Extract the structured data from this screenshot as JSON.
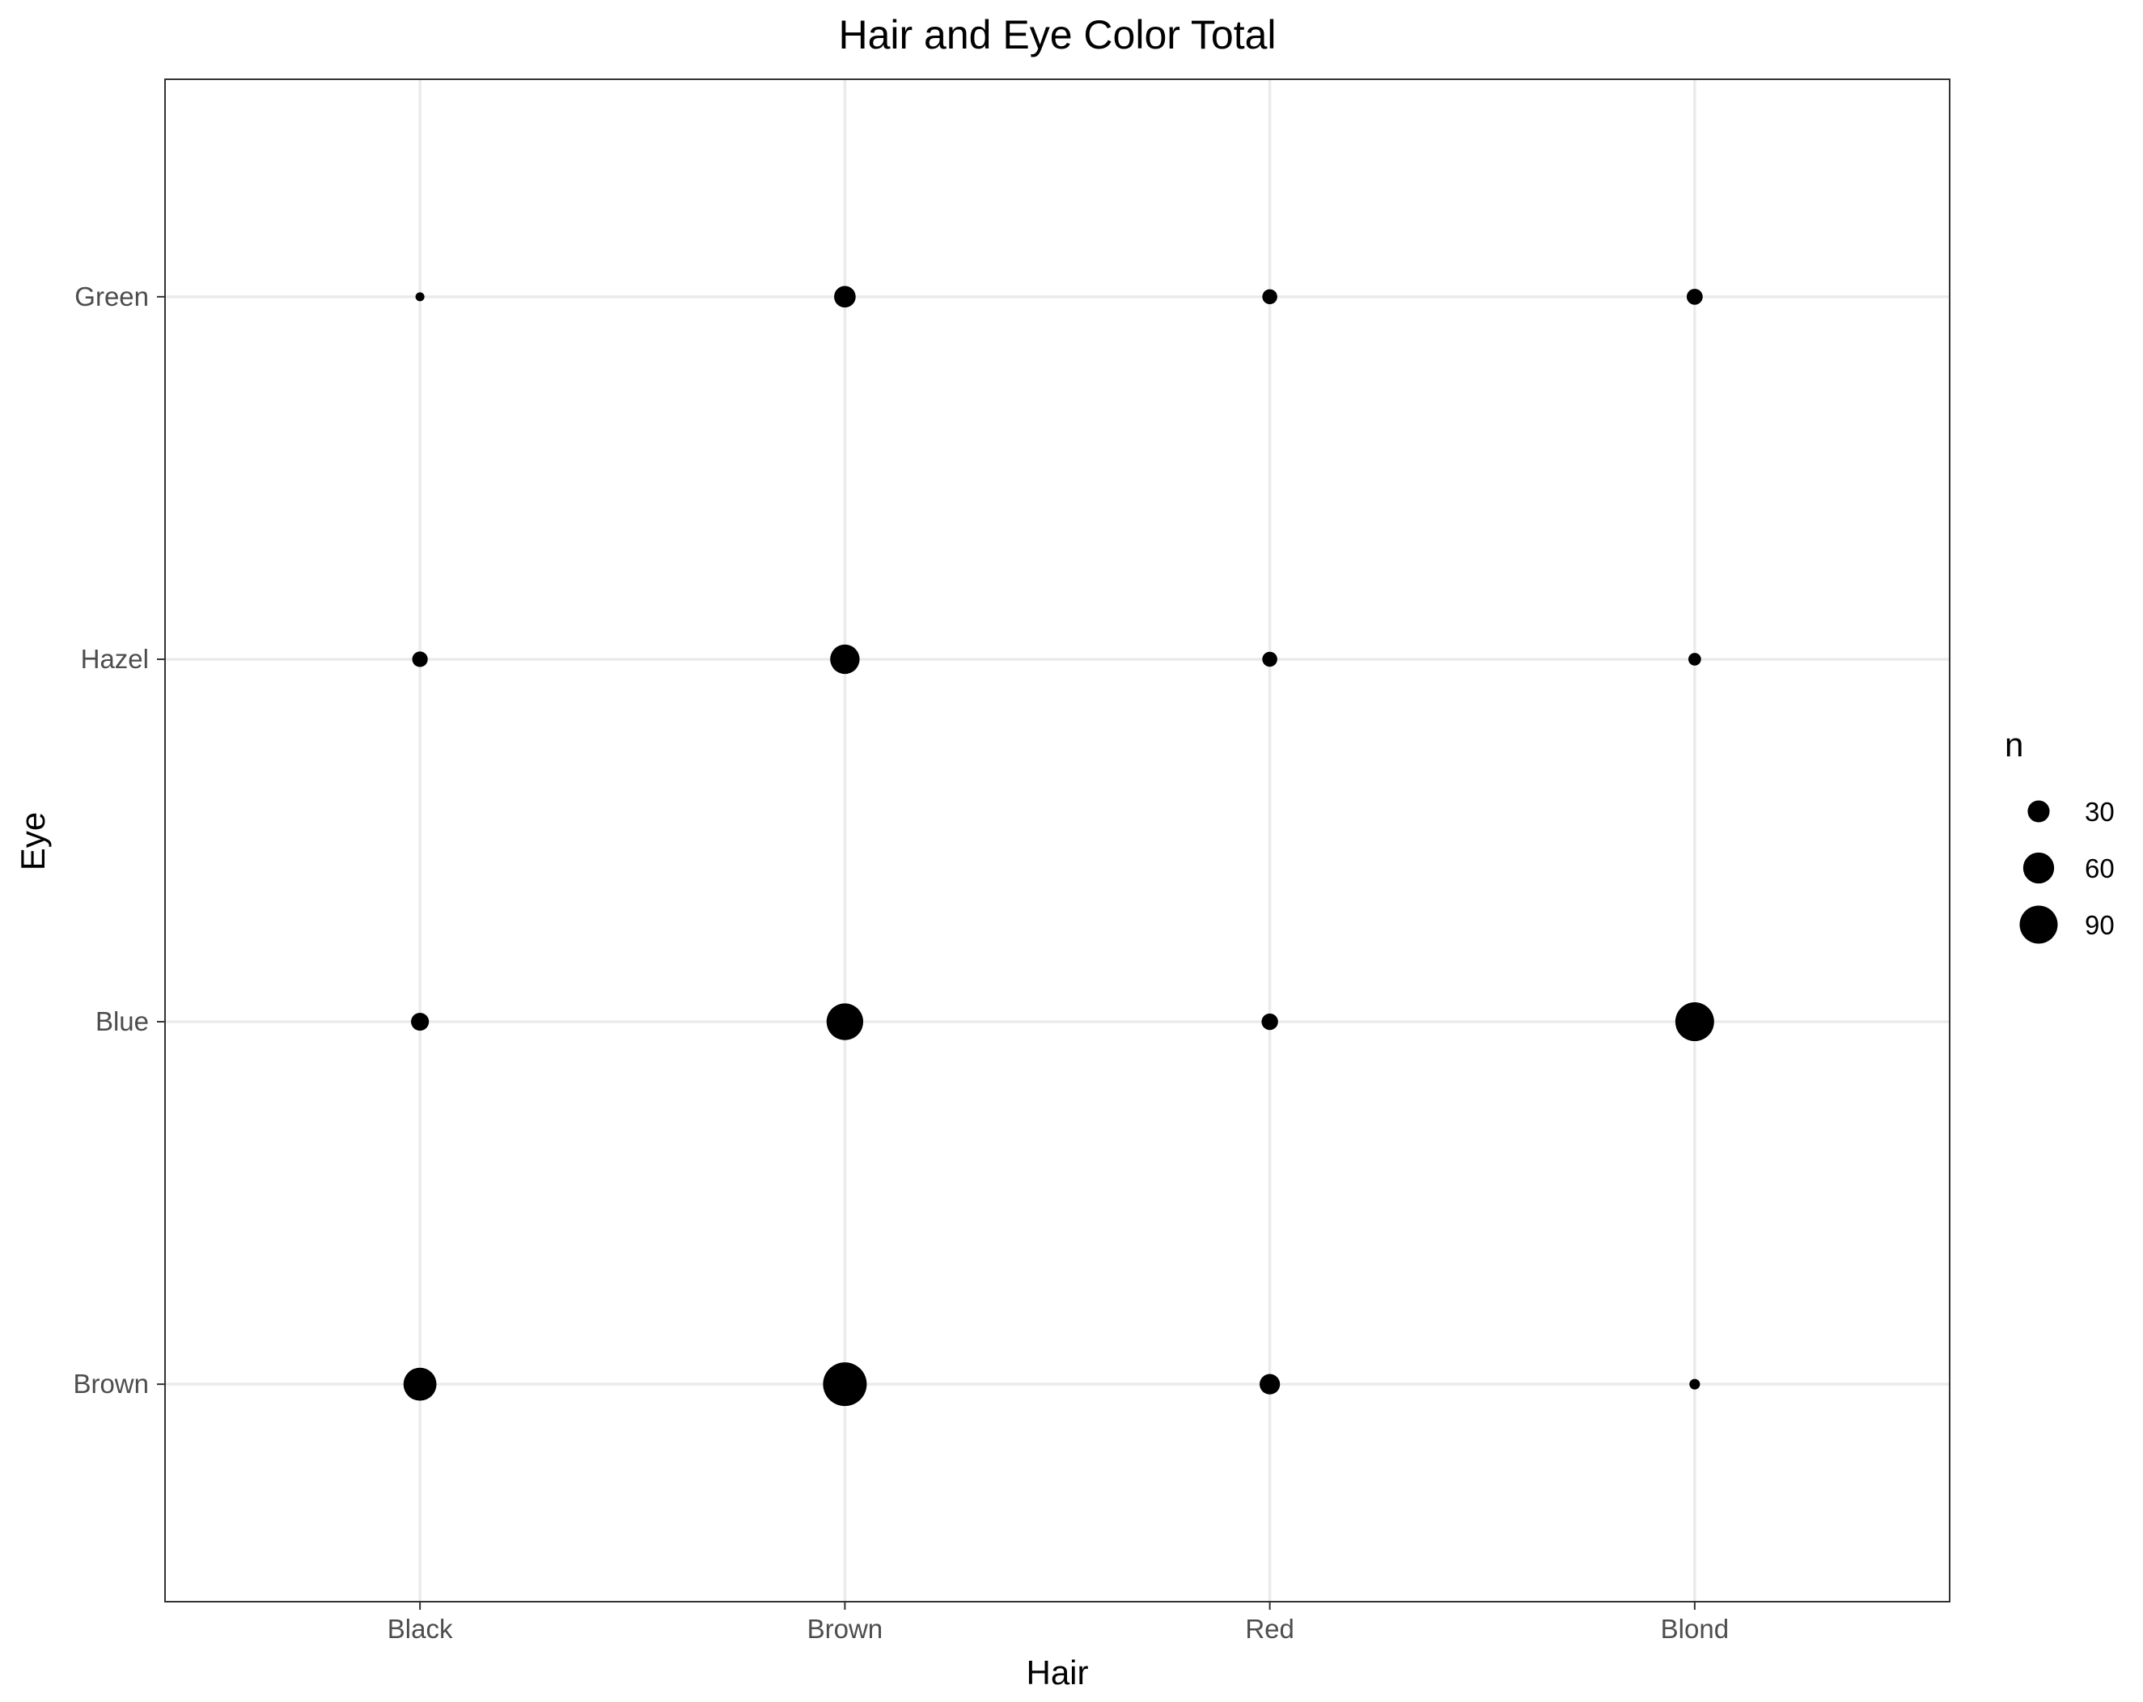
{
  "chart_data": {
    "type": "scatter",
    "title": "Hair and Eye Color Total",
    "xlabel": "Hair",
    "ylabel": "Eye",
    "x_categories": [
      "Black",
      "Brown",
      "Red",
      "Blond"
    ],
    "y_categories": [
      "Brown",
      "Blue",
      "Hazel",
      "Green"
    ],
    "size_variable": "n",
    "points": [
      {
        "x": "Black",
        "y": "Brown",
        "n": 68
      },
      {
        "x": "Black",
        "y": "Blue",
        "n": 20
      },
      {
        "x": "Black",
        "y": "Hazel",
        "n": 15
      },
      {
        "x": "Black",
        "y": "Green",
        "n": 5
      },
      {
        "x": "Brown",
        "y": "Brown",
        "n": 119
      },
      {
        "x": "Brown",
        "y": "Blue",
        "n": 84
      },
      {
        "x": "Brown",
        "y": "Hazel",
        "n": 54
      },
      {
        "x": "Brown",
        "y": "Green",
        "n": 29
      },
      {
        "x": "Red",
        "y": "Brown",
        "n": 26
      },
      {
        "x": "Red",
        "y": "Blue",
        "n": 17
      },
      {
        "x": "Red",
        "y": "Hazel",
        "n": 14
      },
      {
        "x": "Red",
        "y": "Green",
        "n": 14
      },
      {
        "x": "Blond",
        "y": "Brown",
        "n": 7
      },
      {
        "x": "Blond",
        "y": "Blue",
        "n": 94
      },
      {
        "x": "Blond",
        "y": "Hazel",
        "n": 10
      },
      {
        "x": "Blond",
        "y": "Green",
        "n": 16
      }
    ],
    "legend": {
      "title": "n",
      "placement": "right",
      "entries": [
        {
          "label": "30",
          "n": 30
        },
        {
          "label": "60",
          "n": 60
        },
        {
          "label": "90",
          "n": 90
        }
      ]
    },
    "grid": true,
    "colors": {
      "point": "#000000",
      "grid": "#ebebeb",
      "panel_border": "#333333",
      "tick_label": "#4d4d4d"
    }
  }
}
